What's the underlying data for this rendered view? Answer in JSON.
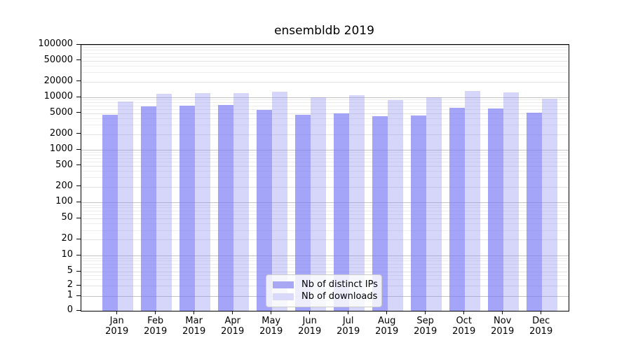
{
  "title": "ensembldb 2019",
  "legend": {
    "items": [
      {
        "label": "Nb of distinct IPs",
        "color": "#a7a7f3"
      },
      {
        "label": "Nb of downloads",
        "color": "#d9d9f9"
      }
    ]
  },
  "chart_data": {
    "type": "bar",
    "title": "ensembldb 2019",
    "categories": [
      "Jan",
      "Feb",
      "Mar",
      "Apr",
      "May",
      "Jun",
      "Jul",
      "Aug",
      "Sep",
      "Oct",
      "Nov",
      "Dec"
    ],
    "year_label": "2019",
    "series": [
      {
        "name": "Nb of distinct IPs",
        "color": "#a8a8f8",
        "values": [
          4600,
          6650,
          7000,
          7100,
          5800,
          4600,
          4900,
          4300,
          4550,
          6300,
          6200,
          5150
        ]
      },
      {
        "name": "Nb of downloads",
        "color": "#d8d8fa",
        "values": [
          8300,
          11800,
          11900,
          12000,
          12900,
          10100,
          11000,
          8900,
          10100,
          13400,
          12300,
          9500
        ]
      }
    ],
    "yscale": "symlog",
    "ylim": [
      0,
      100000
    ],
    "y_ticks": [
      0,
      1,
      2,
      5,
      10,
      20,
      50,
      100,
      200,
      500,
      1000,
      2000,
      5000,
      10000,
      20000,
      50000,
      100000
    ],
    "grid": "on",
    "legend_position": "lower center"
  }
}
